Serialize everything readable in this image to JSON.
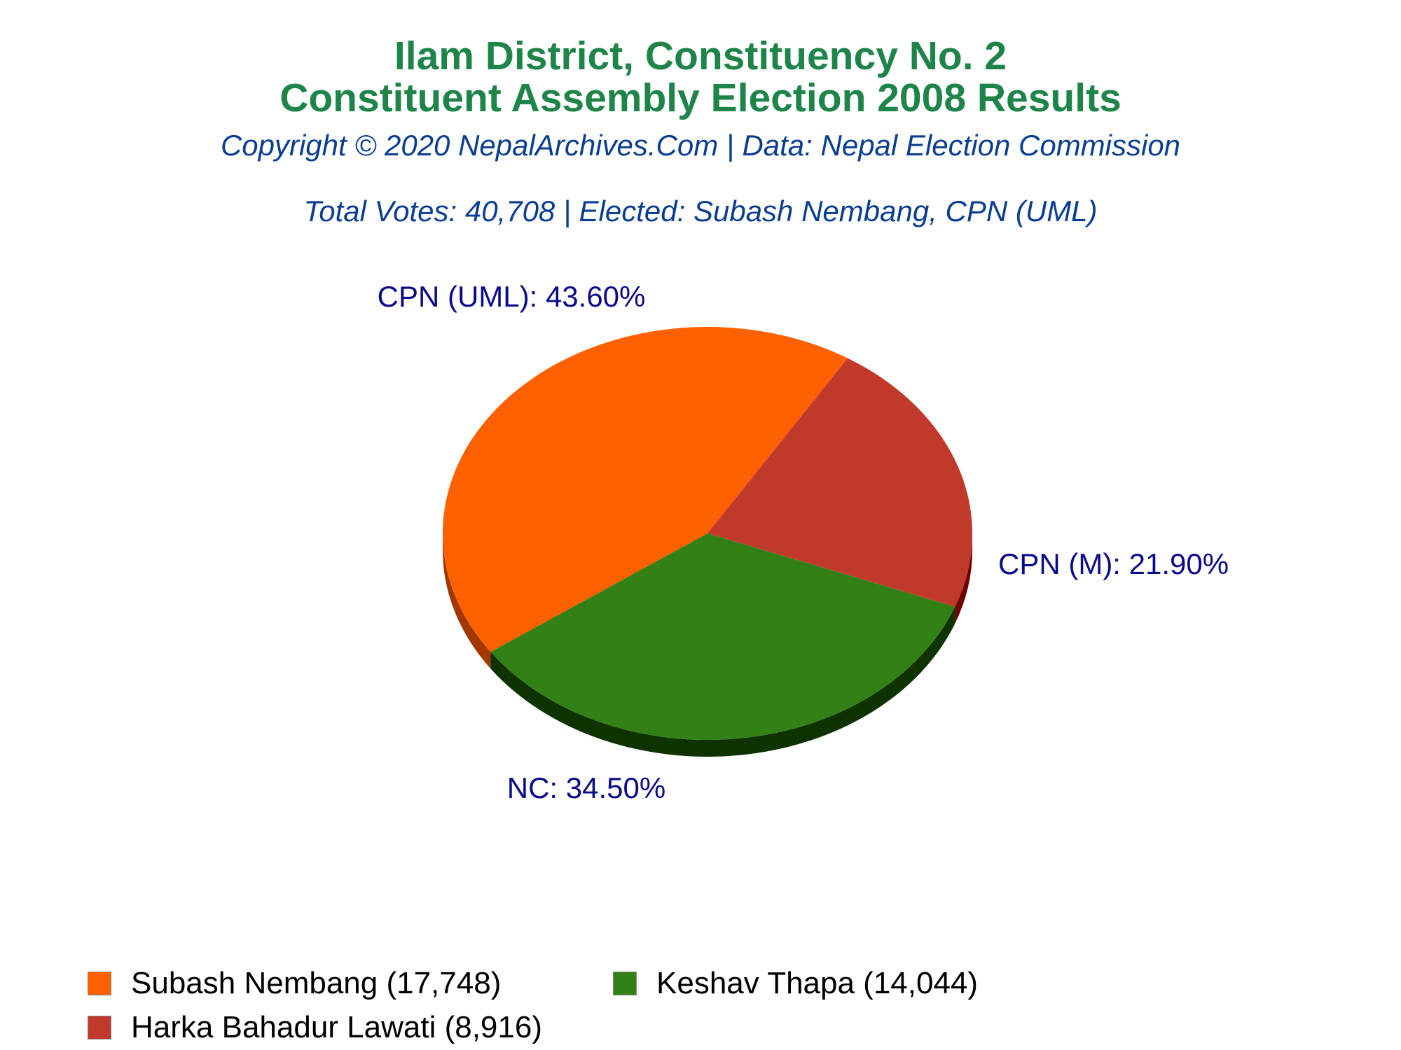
{
  "header": {
    "title_line1": "Ilam District, Constituency No. 2",
    "title_line2": "Constituent Assembly Election 2008 Results",
    "copyright": "Copyright © 2020 NepalArchives.Com | Data: Nepal Election Commission",
    "summary": "Total Votes: 40,708 | Elected: Subash Nembang, CPN (UML)"
  },
  "colors": {
    "title": "#1e8449",
    "subtitle": "#0b3d91",
    "slice_label": "#0a0a8a"
  },
  "chart_data": {
    "type": "pie",
    "style": "3d",
    "legend_position": "bottom",
    "slices": [
      {
        "party": "CPN (UML)",
        "percent": 43.6,
        "label": "CPN (UML): 43.60%",
        "legend": "Subash Nembang (17,748)",
        "votes": 17748,
        "color": "#ff6000",
        "side_color": "#a03800"
      },
      {
        "party": "CPN (M)",
        "percent": 21.9,
        "label": "CPN (M): 21.90%",
        "legend": "Harka Bahadur Lawati (8,916)",
        "votes": 8916,
        "color": "#c0392b",
        "side_color": "#6e0000"
      },
      {
        "party": "NC",
        "percent": 34.5,
        "label": "NC: 34.50%",
        "legend": "Keshav Thapa (14,044)",
        "votes": 14044,
        "color": "#338016",
        "side_color": "#0e3300"
      }
    ]
  }
}
